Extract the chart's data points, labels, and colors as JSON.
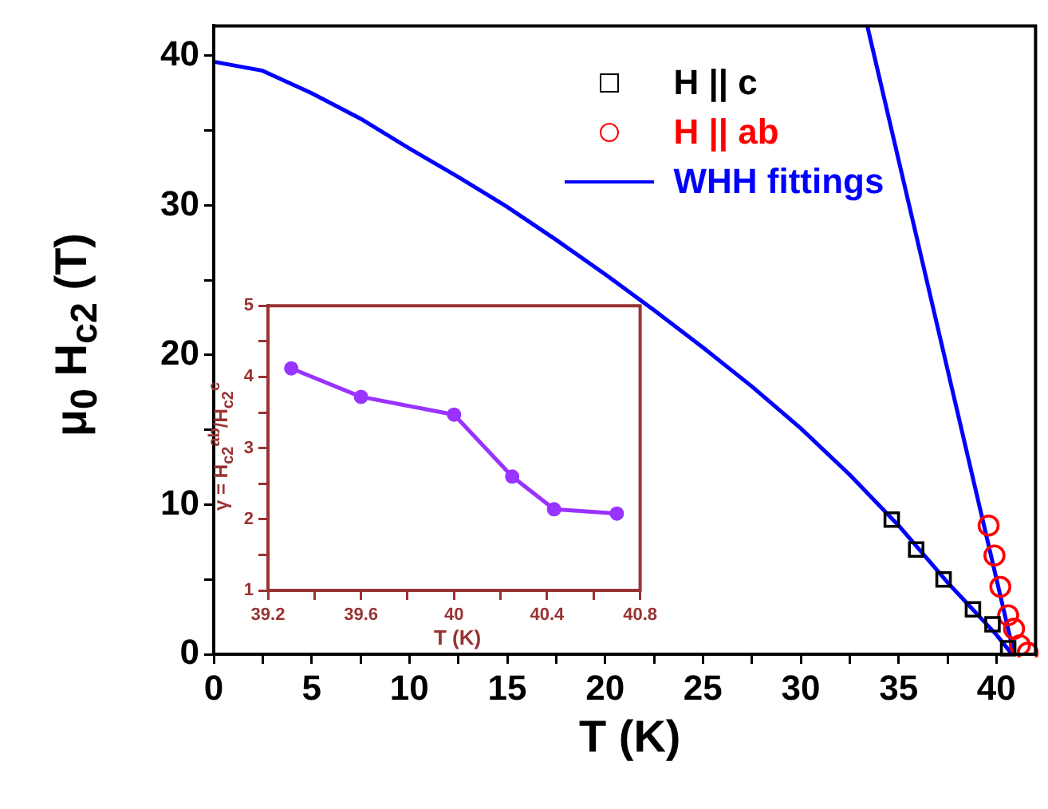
{
  "chart_data": [
    {
      "type": "scatter",
      "xlabel": "T (K)",
      "ylabel": "μ$_{0}$ H$_{c2}$ (T)",
      "xlim": [
        0,
        42
      ],
      "ylim": [
        0,
        42
      ],
      "xticks": [
        0,
        {
          "value": 2.5,
          "label": null
        },
        5,
        {
          "value": 7.5,
          "label": null
        },
        10,
        {
          "value": 12.5,
          "label": null
        },
        15,
        {
          "value": 17.5,
          "label": null
        },
        20,
        {
          "value": 22.5,
          "label": null
        },
        25,
        {
          "value": 27.5,
          "label": null
        },
        30,
        {
          "value": 32.5,
          "label": null
        },
        35,
        {
          "value": 37.5,
          "label": null
        },
        40
      ],
      "yticks": [
        0,
        {
          "value": 5,
          "label": null
        },
        10,
        {
          "value": 15,
          "label": null
        },
        20,
        {
          "value": 25,
          "label": null
        },
        30,
        {
          "value": 35,
          "label": null
        },
        40
      ],
      "grid": false,
      "legend": "top right",
      "series": [
        {
          "name": "H || c",
          "type": "scatter",
          "marker": "square",
          "color": "#000000",
          "x": [
            34.65,
            35.9,
            37.3,
            38.8,
            39.8,
            40.6
          ],
          "values": [
            9,
            7,
            5,
            3,
            2,
            0.4
          ]
        },
        {
          "name": "H || ab",
          "type": "scatter",
          "marker": "circle",
          "color": "#ff0000",
          "x": [
            39.6,
            39.9,
            40.2,
            40.6,
            40.9,
            41.2,
            41.6
          ],
          "values": [
            8.6,
            6.6,
            4.5,
            2.6,
            1.7,
            0.6,
            0.1
          ]
        },
        {
          "name": "WHH fittings",
          "type": "line",
          "marker": "none",
          "line_style": "solid",
          "color": "#0000ff",
          "x": [
            0,
            2.5,
            5,
            7.5,
            10,
            12.5,
            15,
            17.5,
            20,
            22.5,
            25,
            27.5,
            30,
            32.5,
            35,
            37.5,
            39,
            40,
            40.8
          ],
          "values": [
            39.6,
            39,
            37.5,
            35.8,
            33.8,
            31.9,
            29.9,
            27.7,
            25.4,
            23,
            20.5,
            17.9,
            15.1,
            12,
            8.6,
            4.8,
            2.7,
            1.3,
            0
          ]
        },
        {
          "type": "line",
          "marker": "none",
          "line_style": "solid",
          "color": "#0000ff",
          "x": [
            33.4,
            40.9
          ],
          "values": [
            42,
            0
          ]
        }
      ]
    },
    {
      "type": "line",
      "xlabel": "T (K)",
      "ylabel": "γ = H$_{c2}$$^{ab}$/H$_{c2}$$^{c}$",
      "marker": "circle",
      "color": "#9933ff",
      "x": [
        39.3,
        39.6,
        40.0,
        40.25,
        40.43,
        40.7
      ],
      "values": [
        4.12,
        3.72,
        3.47,
        2.6,
        2.14,
        2.08
      ],
      "xlim": [
        39.2,
        40.8
      ],
      "xticks": [
        39.2,
        {
          "value": 39.4,
          "label": null
        },
        39.6,
        {
          "value": 39.8,
          "label": null
        },
        40.0,
        {
          "value": 40.2,
          "label": null
        },
        40.4,
        {
          "value": 40.6,
          "label": null
        },
        40.8
      ],
      "ylim": [
        1,
        5
      ],
      "yticks": [
        1,
        {
          "value": 1.5,
          "label": null
        },
        2,
        {
          "value": 2.5,
          "label": null
        },
        3,
        {
          "value": 3.5,
          "label": null
        },
        4,
        {
          "value": 4.5,
          "label": null
        },
        5
      ],
      "grid": false
    }
  ]
}
